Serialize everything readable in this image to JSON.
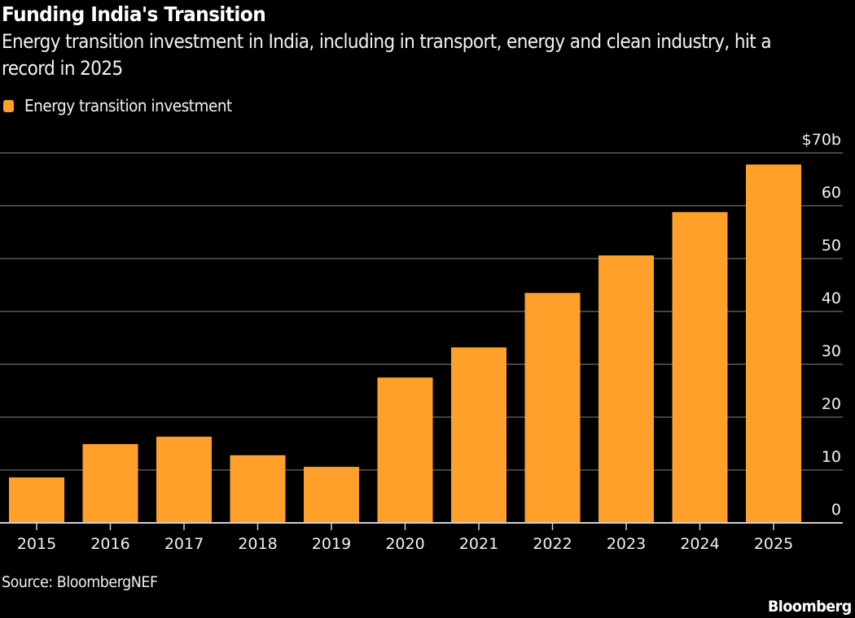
{
  "header": {
    "title": "Funding India's Transition",
    "subtitle": "Energy transition investment in India, including in transport, energy and clean industry, hit a record in 2025"
  },
  "footer": {
    "source": "Source: BloombergNEF",
    "brand": "Bloomberg"
  },
  "colors": {
    "background": "#000000",
    "bar": "#FFA02A",
    "grid": "#5a5a5a",
    "axis": "#d0d0d0",
    "text": "#f2f2f2"
  },
  "chart_data": {
    "type": "bar",
    "title": "Funding India's Transition",
    "subtitle": "Energy transition investment in India, including in transport, energy and clean industry, hit a record in 2025",
    "xlabel": "",
    "ylabel": "",
    "categories": [
      "2015",
      "2016",
      "2017",
      "2018",
      "2019",
      "2020",
      "2021",
      "2022",
      "2023",
      "2024",
      "2025"
    ],
    "series": [
      {
        "name": "Energy transition investment",
        "values": [
          8.6,
          14.9,
          16.3,
          12.8,
          10.6,
          27.5,
          33.2,
          43.5,
          50.6,
          58.8,
          67.8
        ]
      }
    ],
    "ylim": [
      0,
      70
    ],
    "yticks": [
      0,
      10,
      20,
      30,
      40,
      50,
      60,
      70
    ],
    "ytick_labels": [
      "0",
      "10",
      "20",
      "30",
      "40",
      "50",
      "60",
      "$70b"
    ],
    "y_axis_side": "right",
    "grid": true,
    "legend": {
      "placement": "top-left",
      "entries": [
        "Energy transition investment"
      ]
    },
    "source": "Source: BloombergNEF"
  }
}
